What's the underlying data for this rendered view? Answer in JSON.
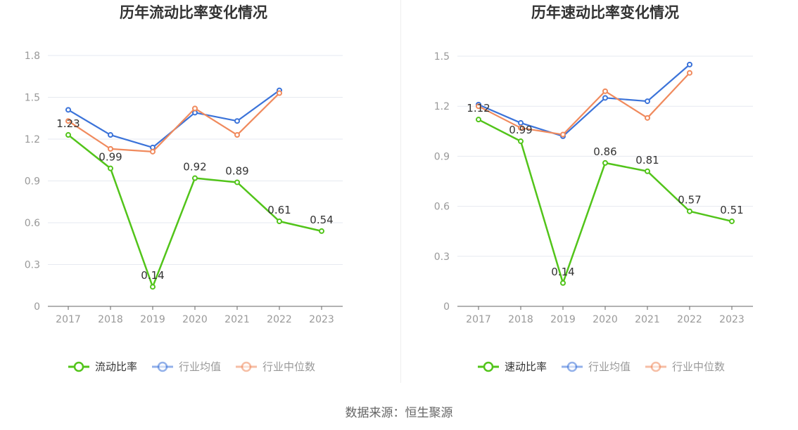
{
  "footer": {
    "source": "数据来源：恒生聚源"
  },
  "colors": {
    "company": "#52c41a",
    "industry_avg": "#3b73d9",
    "industry_median": "#f08a5d"
  },
  "chart_data": [
    {
      "type": "line",
      "title": "历年流动比率变化情况",
      "categories": [
        "2017",
        "2018",
        "2019",
        "2020",
        "2021",
        "2022",
        "2023"
      ],
      "ylim": [
        0,
        1.8
      ],
      "yticks": [
        "0",
        "0.3",
        "0.6",
        "0.9",
        "1.2",
        "1.5",
        "1.8"
      ],
      "grid": true,
      "legend": "bottom",
      "series": [
        {
          "name": "流动比率",
          "color": "#52c41a",
          "values": [
            1.23,
            0.99,
            0.14,
            0.92,
            0.89,
            0.61,
            0.54
          ],
          "labels": [
            "1.23",
            "0.99",
            "0.14",
            "0.92",
            "0.89",
            "0.61",
            "0.54"
          ]
        },
        {
          "name": "行业均值",
          "color": "#3b73d9",
          "values": [
            1.41,
            1.23,
            1.14,
            1.39,
            1.33,
            1.55,
            null
          ]
        },
        {
          "name": "行业中位数",
          "color": "#f08a5d",
          "values": [
            1.33,
            1.13,
            1.11,
            1.42,
            1.23,
            1.53,
            null
          ]
        }
      ]
    },
    {
      "type": "line",
      "title": "历年速动比率变化情况",
      "categories": [
        "2017",
        "2018",
        "2019",
        "2020",
        "2021",
        "2022",
        "2023"
      ],
      "ylim": [
        0,
        1.5
      ],
      "yticks": [
        "0",
        "0.3",
        "0.6",
        "0.9",
        "1.2",
        "1.5"
      ],
      "grid": true,
      "legend": "bottom",
      "series": [
        {
          "name": "速动比率",
          "color": "#52c41a",
          "values": [
            1.12,
            0.99,
            0.14,
            0.86,
            0.81,
            0.57,
            0.51
          ],
          "labels": [
            "1.12",
            "0.99",
            "0.14",
            "0.86",
            "0.81",
            "0.57",
            "0.51"
          ]
        },
        {
          "name": "行业均值",
          "color": "#3b73d9",
          "values": [
            1.21,
            1.1,
            1.02,
            1.25,
            1.23,
            1.45,
            null
          ]
        },
        {
          "name": "行业中位数",
          "color": "#f08a5d",
          "values": [
            1.2,
            1.07,
            1.03,
            1.29,
            1.13,
            1.4,
            null
          ]
        }
      ]
    }
  ]
}
